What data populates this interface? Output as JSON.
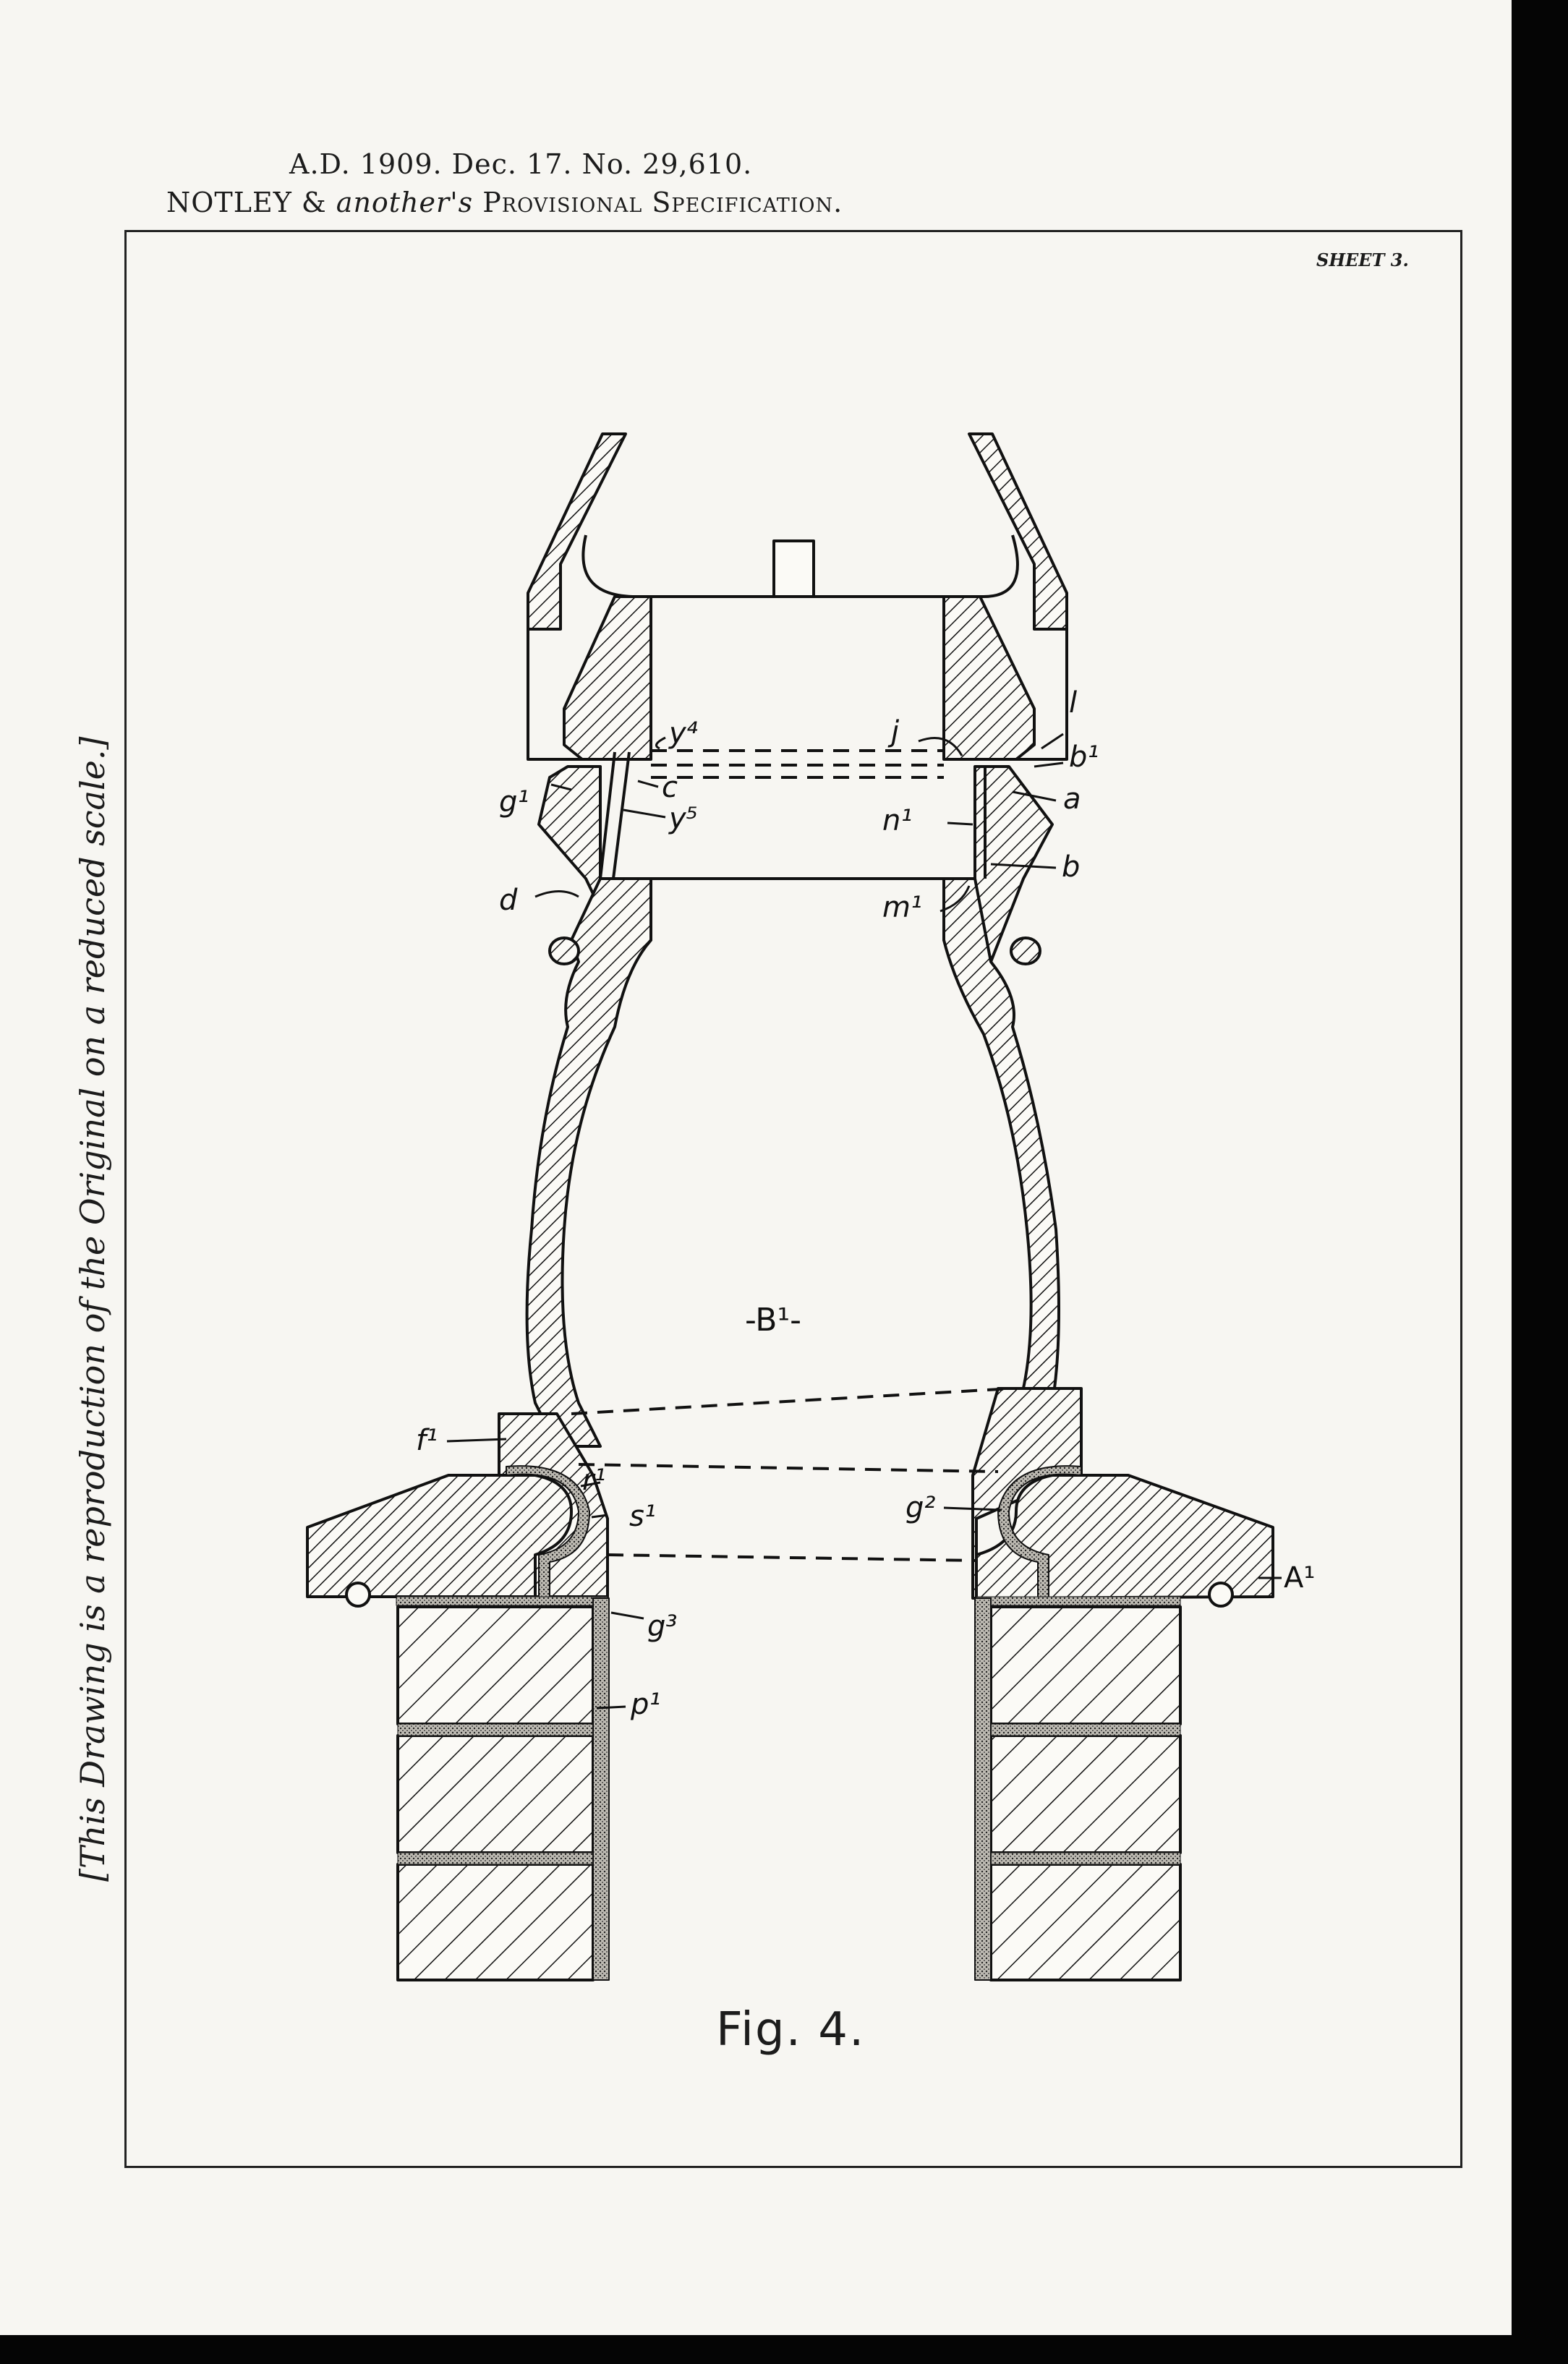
{
  "header": {
    "line1": "A.D. 1909. Dec. 17. No. 29,610.",
    "line2_name": "NOTLEY & ",
    "line2_another": "another's",
    "line2_spec": " Provisional Specification."
  },
  "sheet_label": "SHEET 3.",
  "side_note": "[This Drawing is a reproduction of the Original on a reduced scale.]",
  "figure_caption": "Fig. 4.",
  "labels": {
    "y4": "y⁴",
    "c": "c",
    "y5": "y⁵",
    "g1": "g¹",
    "d": "d",
    "j": "j",
    "l": "l",
    "b1": "b¹",
    "a": "a",
    "n1": "n¹",
    "b": "b",
    "m1": "m¹",
    "B1": "-B¹-",
    "f1": "f¹",
    "r1": "r¹",
    "s1": "s¹",
    "g2": "g²",
    "A1": "A¹",
    "g3": "g³",
    "p1": "p¹"
  },
  "colors": {
    "ink": "#111111",
    "paper": "#f7f6f2",
    "border": "#050505"
  }
}
